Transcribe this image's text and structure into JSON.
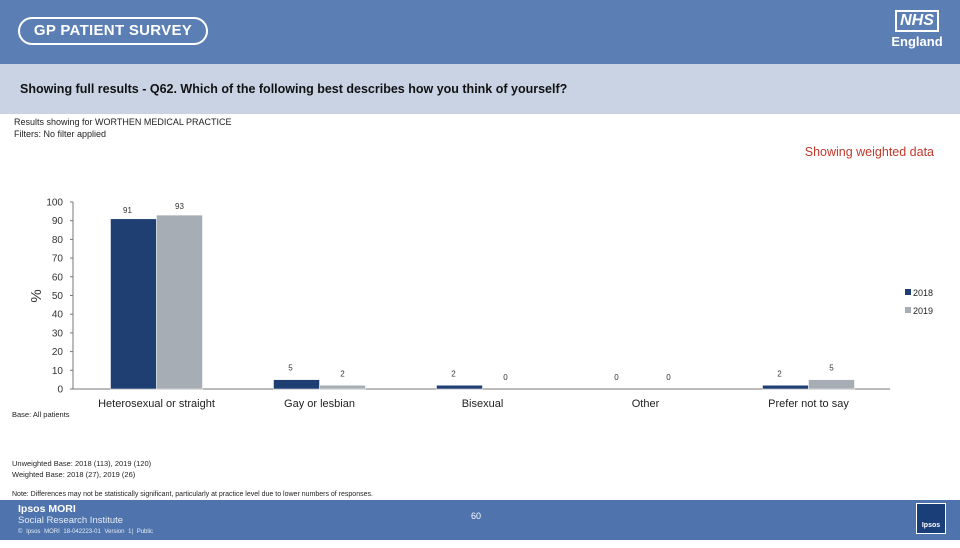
{
  "header": {
    "survey_title": "GP PATIENT SURVEY",
    "nhs_mark": "NHS",
    "nhs_region": "England"
  },
  "question": "Showing full results - Q62.  Which of the following best describes how you think of yourself?",
  "filters": {
    "line1": "Results showing for WORTHEN MEDICAL PRACTICE",
    "line2": "Filters: No filter applied"
  },
  "weighted_label": "Showing weighted data",
  "chart_data": {
    "type": "bar",
    "categories": [
      "Heterosexual or straight",
      "Gay or lesbian",
      "Bisexual",
      "Other",
      "Prefer not to say"
    ],
    "series": [
      {
        "name": "2018",
        "values": [
          91,
          5,
          2,
          0,
          2
        ]
      },
      {
        "name": "2019",
        "values": [
          93,
          2,
          0,
          0,
          5
        ]
      }
    ],
    "ylabel": "%",
    "ylim": [
      0,
      100
    ],
    "yticks": [
      0,
      10,
      20,
      30,
      40,
      50,
      60,
      70,
      80,
      90,
      100
    ],
    "legend_position": "right",
    "colors": {
      "2018": "#1f3f73",
      "2019": "#a6adb5"
    }
  },
  "notes": {
    "base": "Base: All patients",
    "unweighted": "Unweighted Base: 2018 (113), 2019 (120)",
    "weighted": "Weighted Base: 2018 (27), 2019 (26)",
    "disclaimer": "Note: Differences may not be statistically significant, particularly at practice level due to lower numbers of responses."
  },
  "footer": {
    "brand": "Ipsos MORI",
    "unit": "Social Research Institute",
    "copyright": "© Ipsos MORI    18-042223-01 Version 1| Public",
    "page": "60",
    "logo_text": "Ipsos"
  }
}
